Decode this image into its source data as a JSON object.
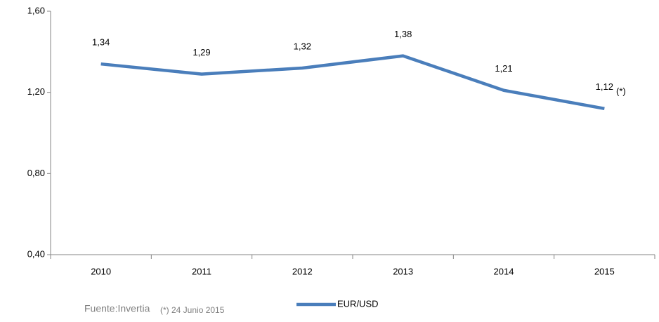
{
  "chart_data": {
    "type": "line",
    "categories": [
      "2010",
      "2011",
      "2012",
      "2013",
      "2014",
      "2015"
    ],
    "series": [
      {
        "name": "EUR/USD",
        "color": "#4a7ebb",
        "values": [
          1.34,
          1.29,
          1.32,
          1.38,
          1.21,
          1.12
        ],
        "value_labels": [
          "1,34",
          "1,29",
          "1,32",
          "1,38",
          "1,21",
          "1,12"
        ]
      }
    ],
    "ylim": [
      0.4,
      1.6
    ],
    "yticks": [
      {
        "value": 0.4,
        "label": "0,40"
      },
      {
        "value": 0.8,
        "label": "0,80"
      },
      {
        "value": 1.2,
        "label": "1,20"
      },
      {
        "value": 1.6,
        "label": "1,60"
      }
    ],
    "grid": false,
    "legend": "bottom",
    "note_marker": "(*)",
    "source": "Fuente:Invertia",
    "footnote": "(*) 24 Junio 2015"
  }
}
